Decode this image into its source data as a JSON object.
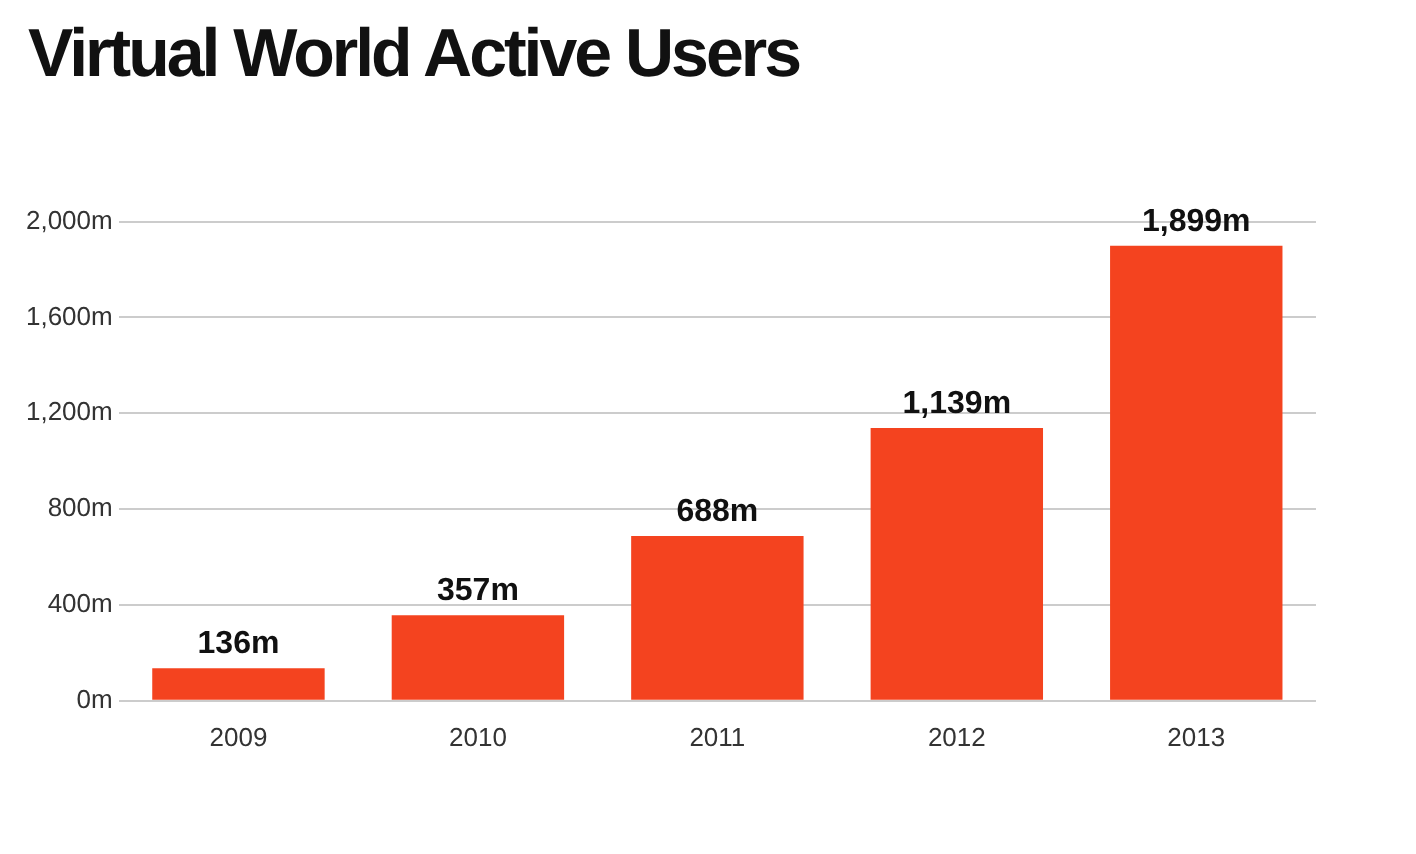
{
  "chart_data": {
    "type": "bar",
    "title": "Virtual World Active  Users",
    "categories": [
      "2009",
      "2010",
      "2011",
      "2012",
      "2013"
    ],
    "values": [
      136,
      357,
      688,
      1139,
      1899
    ],
    "value_labels": [
      "136m",
      "357m",
      "688m",
      "1,139m",
      "1,899m"
    ],
    "color": "#f4431f",
    "ylim": [
      0,
      2000
    ],
    "yticks": [
      {
        "value": 0,
        "label": "0m"
      },
      {
        "value": 400,
        "label": "400m"
      },
      {
        "value": 800,
        "label": "800m"
      },
      {
        "value": 1200,
        "label": "1,200m"
      },
      {
        "value": 1600,
        "label": "1,600m"
      },
      {
        "value": 2000,
        "label": "2,000m"
      }
    ],
    "grid": "y"
  }
}
